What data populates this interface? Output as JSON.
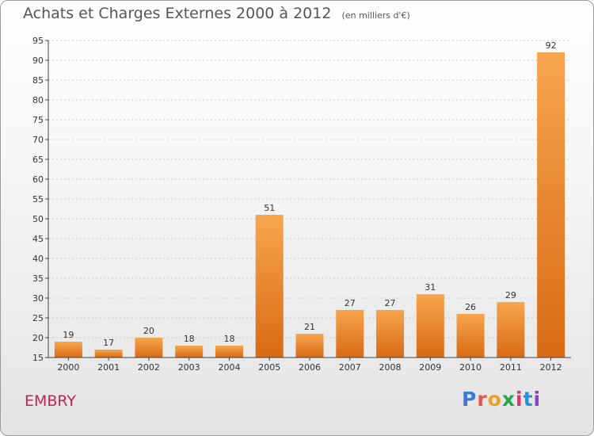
{
  "header": {
    "title": "Achats et Charges Externes 2000 à 2012",
    "subtitle": "(en milliers d'€)"
  },
  "footer": {
    "place": "EMBRY",
    "logo_text": "Proxiti"
  },
  "colors": {
    "bar_top": "#f7a64e",
    "bar_bottom": "#d86a14",
    "place_text": "#c0254f"
  },
  "chart_data": {
    "type": "bar",
    "title": "Achats et Charges Externes 2000 à 2012",
    "subtitle": "(en milliers d'€)",
    "categories": [
      "2000",
      "2001",
      "2002",
      "2003",
      "2004",
      "2005",
      "2006",
      "2007",
      "2008",
      "2009",
      "2010",
      "2011",
      "2012"
    ],
    "values": [
      19,
      17,
      20,
      18,
      18,
      51,
      21,
      27,
      27,
      31,
      26,
      29,
      92
    ],
    "ylim": [
      15,
      95
    ],
    "yticks": [
      15,
      20,
      25,
      30,
      35,
      40,
      45,
      50,
      55,
      60,
      65,
      70,
      75,
      80,
      85,
      90,
      95
    ],
    "grid": "horizontal-dotted",
    "data_labels": true
  }
}
